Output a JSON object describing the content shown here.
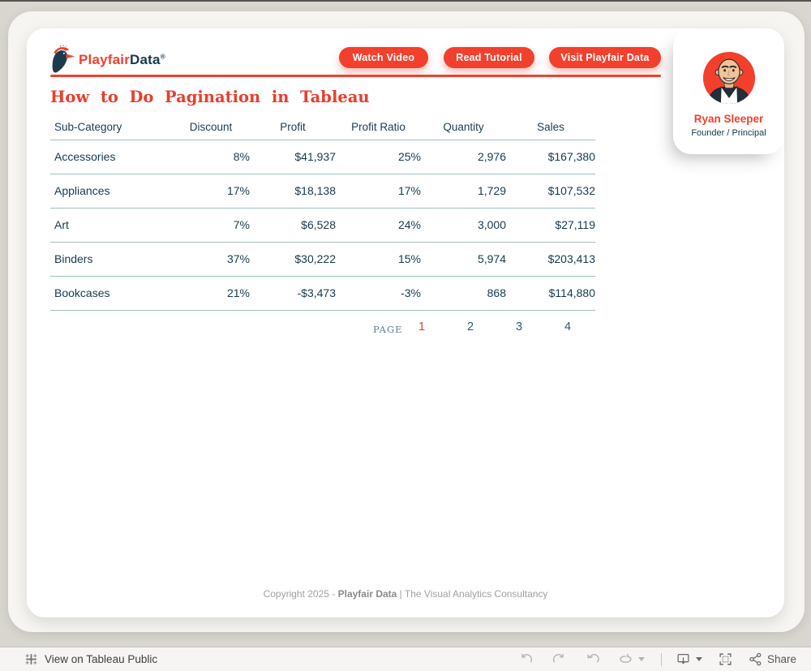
{
  "brand": {
    "logo_text_primary": "Playfair",
    "logo_text_secondary": "Data",
    "registered_mark": "®"
  },
  "header": {
    "buttons": [
      {
        "label": "Watch Video"
      },
      {
        "label": "Read Tutorial"
      },
      {
        "label": "Visit Playfair Data"
      }
    ]
  },
  "page": {
    "title": "How to Do Pagination in Tableau"
  },
  "profile": {
    "name": "Ryan Sleeper",
    "title": "Founder / Principal"
  },
  "table": {
    "columns": [
      "Sub-Category",
      "Discount",
      "Profit",
      "Profit Ratio",
      "Quantity",
      "Sales"
    ],
    "rows": [
      [
        "Accessories",
        "8%",
        "$41,937",
        "25%",
        "2,976",
        "$167,380"
      ],
      [
        "Appliances",
        "17%",
        "$18,138",
        "17%",
        "1,729",
        "$107,532"
      ],
      [
        "Art",
        "7%",
        "$6,528",
        "24%",
        "3,000",
        "$27,119"
      ],
      [
        "Binders",
        "37%",
        "$30,222",
        "15%",
        "5,974",
        "$203,413"
      ],
      [
        "Bookcases",
        "21%",
        "-$3,473",
        "-3%",
        "868",
        "$114,880"
      ]
    ]
  },
  "pagination": {
    "label": "PAGE",
    "pages": [
      "1",
      "2",
      "3",
      "4"
    ],
    "active": "1"
  },
  "footer": {
    "text_prefix": "Copyright 2025 - ",
    "brand": "Playfair Data",
    "text_suffix": " | The Visual Analytics Consultancy"
  },
  "toolbar": {
    "view_label": "View on Tableau Public",
    "share_label": "Share"
  },
  "colors": {
    "accent": "#f2402d",
    "navy": "#173a4d",
    "divider": "#9fc0bc",
    "active_page": "#e93e2c"
  }
}
